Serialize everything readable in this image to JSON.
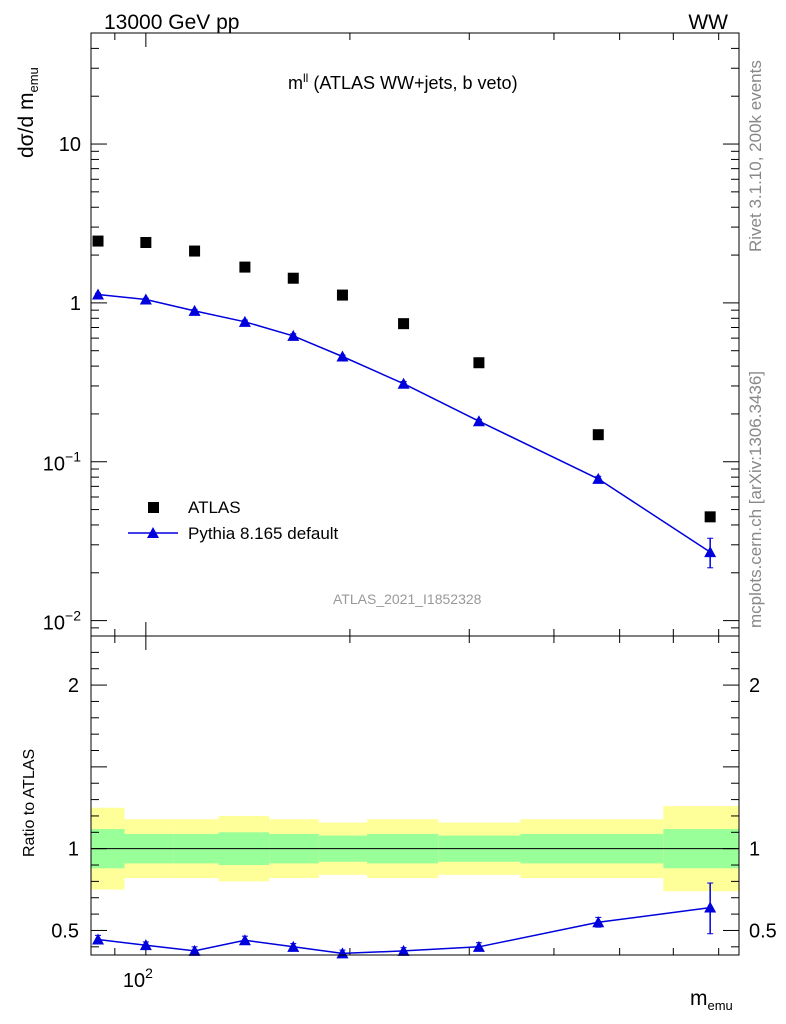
{
  "header": {
    "energy": "13000 GeV pp",
    "process": "WW"
  },
  "side_text": {
    "rivet": "Rivet 3.1.10,  200k events",
    "source": "mcplots.cern.ch [arXiv:1306.3436]"
  },
  "watermark": "ATLAS_2021_I1852328",
  "chart_data": [
    {
      "panel": "main",
      "type": "scatter",
      "title_main": "m",
      "title_sup": "ll",
      "title_rest": " (ATLAS WW+jets, b veto)",
      "ylabel_main": "dσ/d m",
      "ylabel_sub": "emu",
      "yscale": "log",
      "ylim": [
        0.008,
        50
      ],
      "xscale": "log",
      "xlim": [
        83,
        750
      ],
      "yticks": [
        {
          "value": 10,
          "label": "10"
        },
        {
          "value": 1,
          "label": "1"
        },
        {
          "value": 0.1,
          "label_base": "10",
          "label_exp": "−1"
        },
        {
          "value": 0.01,
          "label_base": "10",
          "label_exp": "−2"
        }
      ],
      "legend": {
        "position": "bottom-left",
        "entries": [
          "ATLAS",
          "Pythia 8.165 default"
        ]
      },
      "series": [
        {
          "name": "ATLAS",
          "marker": "square",
          "color": "#000000",
          "x": [
            85,
            100,
            118,
            140,
            165,
            195,
            240,
            310,
            465,
            680
          ],
          "values": [
            2.45,
            2.4,
            2.12,
            1.68,
            1.43,
            1.12,
            0.74,
            0.42,
            0.148,
            0.045
          ]
        },
        {
          "name": "Pythia 8.165 default",
          "marker": "triangle",
          "color": "#0000dd",
          "x": [
            85,
            100,
            118,
            140,
            165,
            195,
            240,
            310,
            465,
            680
          ],
          "values": [
            1.13,
            1.05,
            0.89,
            0.76,
            0.62,
            0.46,
            0.31,
            0.18,
            0.078,
            0.027
          ],
          "err_low": [
            0.02,
            0.02,
            0.02,
            0.02,
            0.02,
            0.01,
            0.01,
            0.005,
            0.003,
            0.0055
          ],
          "err_high": [
            0.02,
            0.02,
            0.02,
            0.02,
            0.02,
            0.01,
            0.01,
            0.005,
            0.003,
            0.006
          ]
        }
      ]
    },
    {
      "panel": "ratio",
      "type": "line",
      "ylabel": "Ratio to ATLAS",
      "xlabel_main": "m",
      "xlabel_sub": "emu",
      "ylim": [
        0.35,
        2.3
      ],
      "xlim": [
        83,
        750
      ],
      "yticks": [
        {
          "value": 2,
          "label": "2"
        },
        {
          "value": 1,
          "label": "1"
        },
        {
          "value": 0.5,
          "label": "0.5"
        }
      ],
      "xticks": [
        {
          "value": 100,
          "label_base": "10",
          "label_exp": "2"
        }
      ],
      "bands": {
        "edges": [
          83,
          93,
          110,
          128,
          152,
          180,
          212,
          270,
          357,
          580,
          750
        ],
        "inner_low": [
          0.88,
          0.91,
          0.91,
          0.9,
          0.91,
          0.92,
          0.91,
          0.92,
          0.91,
          0.88
        ],
        "inner_high": [
          1.12,
          1.09,
          1.09,
          1.1,
          1.09,
          1.08,
          1.09,
          1.08,
          1.09,
          1.12
        ],
        "outer_low": [
          0.75,
          0.82,
          0.82,
          0.8,
          0.82,
          0.84,
          0.82,
          0.84,
          0.82,
          0.74
        ],
        "outer_high": [
          1.25,
          1.18,
          1.18,
          1.2,
          1.18,
          1.16,
          1.18,
          1.16,
          1.18,
          1.26
        ],
        "inner_color": "#99ff99",
        "outer_color": "#ffff99"
      },
      "series": [
        {
          "name": "Pythia 8.165 default",
          "color": "#0000dd",
          "x": [
            85,
            100,
            118,
            140,
            165,
            195,
            240,
            310,
            465,
            680
          ],
          "values": [
            0.445,
            0.41,
            0.375,
            0.44,
            0.4,
            0.36,
            0.375,
            0.4,
            0.55,
            0.64
          ],
          "err_low": [
            0.025,
            0.02,
            0.025,
            0.025,
            0.02,
            0.02,
            0.02,
            0.025,
            0.03,
            0.16
          ],
          "err_high": [
            0.025,
            0.02,
            0.025,
            0.025,
            0.02,
            0.02,
            0.02,
            0.025,
            0.03,
            0.15
          ]
        }
      ]
    }
  ]
}
